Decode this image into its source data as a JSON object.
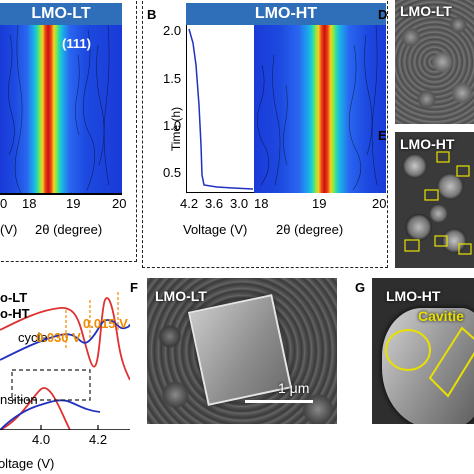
{
  "panelA": {
    "title": "LMO-LT",
    "peak": "(111)",
    "xticks_left": [
      "0",
      "(V)"
    ],
    "xticks": [
      "18",
      "19",
      "20"
    ],
    "xlabel": "2θ (degree)"
  },
  "panelB": {
    "letter": "B",
    "title": "LMO-HT",
    "ylabel": "Time (h)",
    "yticks": [
      "2.0",
      "1.5",
      "1.0",
      "0.5"
    ],
    "vticks": [
      "4.2",
      "3.6",
      "3.0"
    ],
    "vlabel": "Voltage (V)",
    "xticks": [
      "18",
      "19",
      "20"
    ],
    "xlabel": "2θ (degree)"
  },
  "panelD": {
    "letter": "D",
    "label": "LMO-LT"
  },
  "panelE": {
    "letter": "E",
    "label": "LMO-HT"
  },
  "panelC": {
    "legend1": "o-LT",
    "legend2": "o-HT",
    "cycle": "cycle",
    "ann1": "0.015 V",
    "ann2": "0.030 V",
    "transition": "nsition",
    "xticks": [
      "4.0",
      "4.2"
    ],
    "xlabel": "Voltage (V)"
  },
  "panelF": {
    "letter": "F",
    "label": "LMO-LT",
    "scale": "1 μm"
  },
  "panelG": {
    "letter": "G",
    "label": "LMO-HT",
    "cavity": "Cavitie"
  },
  "colors": {
    "bar": "#2f6fba",
    "red": "#e03030",
    "blue": "#2030c0",
    "orange": "#f08a00",
    "yellow": "#e8e000"
  }
}
